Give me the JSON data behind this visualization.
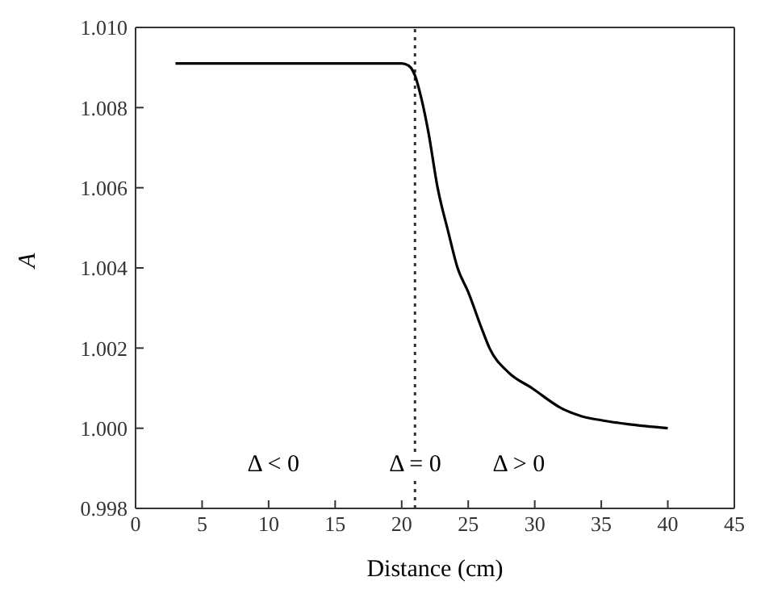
{
  "chart_data": {
    "type": "line",
    "xlabel": "Distance (cm)",
    "ylabel": "A",
    "x": [
      3,
      20,
      20.5,
      21,
      21.5,
      22,
      22.7,
      23.5,
      24.2,
      25,
      26,
      26.6,
      28,
      29.8,
      32,
      33.5,
      35,
      37,
      40
    ],
    "series": [
      {
        "color": "#000000",
        "values": [
          1.0091,
          1.0091,
          1.00905,
          1.0088,
          1.0082,
          1.0074,
          1.006,
          1.0049,
          1.004,
          1.0034,
          1.0025,
          1.002,
          1.0014,
          1.001,
          1.0005,
          1.0003,
          1.0002,
          1.0001,
          1.0
        ]
      }
    ],
    "xlim": [
      0,
      45
    ],
    "xticks": [
      0,
      5,
      10,
      15,
      20,
      25,
      30,
      35,
      40,
      45
    ],
    "ylim": [
      0.998,
      1.01
    ],
    "yticks": [
      0.998,
      {
        "value": 1.0,
        "label": "1.000"
      },
      1.002,
      1.004,
      1.006,
      1.008,
      {
        "value": 1.01,
        "label": "1.010"
      }
    ],
    "ref_lines": [
      {
        "axis": "x",
        "value": 21,
        "line_style": "dotted",
        "color": "#333333"
      }
    ],
    "annotations": [
      "Δ < 0",
      "Δ = 0",
      "Δ > 0"
    ],
    "legend": false,
    "marker": "none",
    "line_style": "solid"
  }
}
